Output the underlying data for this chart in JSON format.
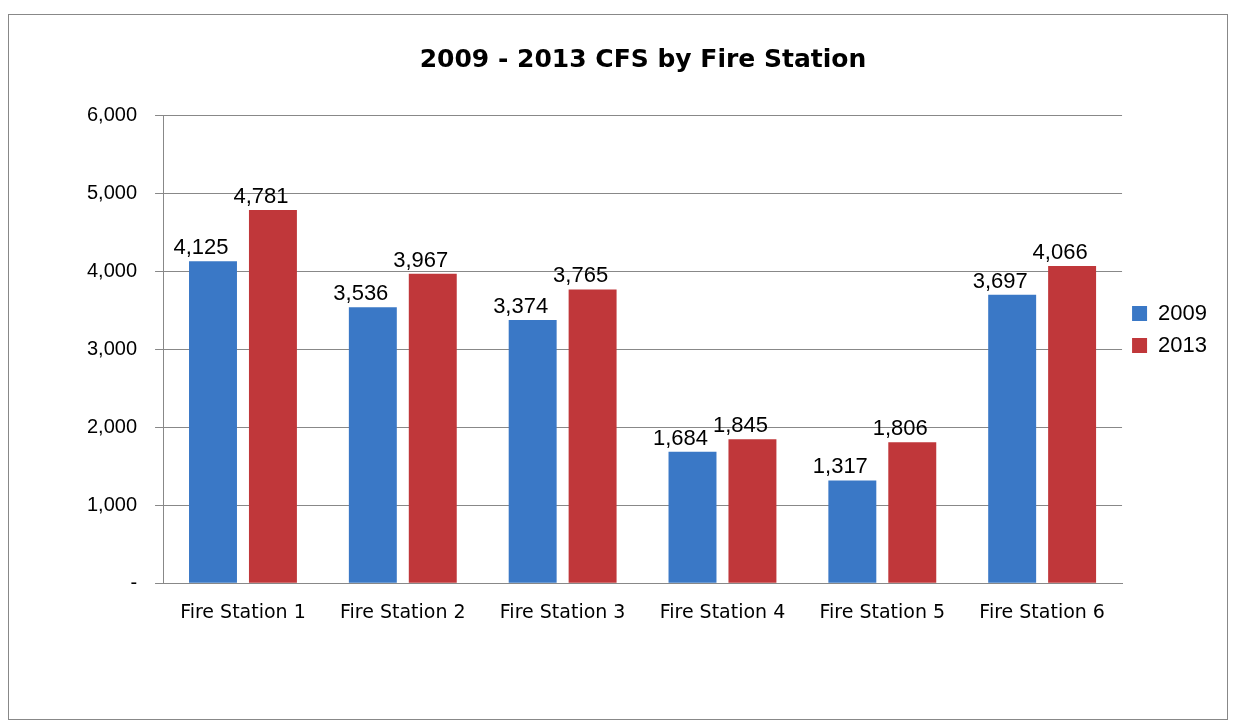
{
  "chart_data": {
    "type": "bar",
    "title": "2009 - 2013 CFS by Fire Station",
    "categories": [
      "Fire Station 1",
      "Fire Station 2",
      "Fire Station 3",
      "Fire Station 4",
      "Fire Station 5",
      "Fire Station 6"
    ],
    "series": [
      {
        "name": "2009",
        "color": "#3a78c6",
        "values": [
          4125,
          3536,
          3374,
          1684,
          1317,
          3697
        ],
        "value_labels": [
          "4,125",
          "3,536",
          "3,374",
          "1,684",
          "1,317",
          "3,697"
        ]
      },
      {
        "name": "2013",
        "color": "#c0373a",
        "values": [
          4781,
          3967,
          3765,
          1845,
          1806,
          4066
        ],
        "value_labels": [
          "4,781",
          "3,967",
          "3,765",
          "1,845",
          "1,806",
          "4,066"
        ]
      }
    ],
    "ylim": [
      0,
      6000
    ],
    "yticks": [
      {
        "value": 0,
        "label": "-"
      },
      {
        "value": 1000,
        "label": "1,000"
      },
      {
        "value": 2000,
        "label": "2,000"
      },
      {
        "value": 3000,
        "label": "3,000"
      },
      {
        "value": 4000,
        "label": "4,000"
      },
      {
        "value": 5000,
        "label": "5,000"
      },
      {
        "value": 6000,
        "label": "6,000"
      }
    ],
    "grid": "y",
    "legend": "right"
  }
}
